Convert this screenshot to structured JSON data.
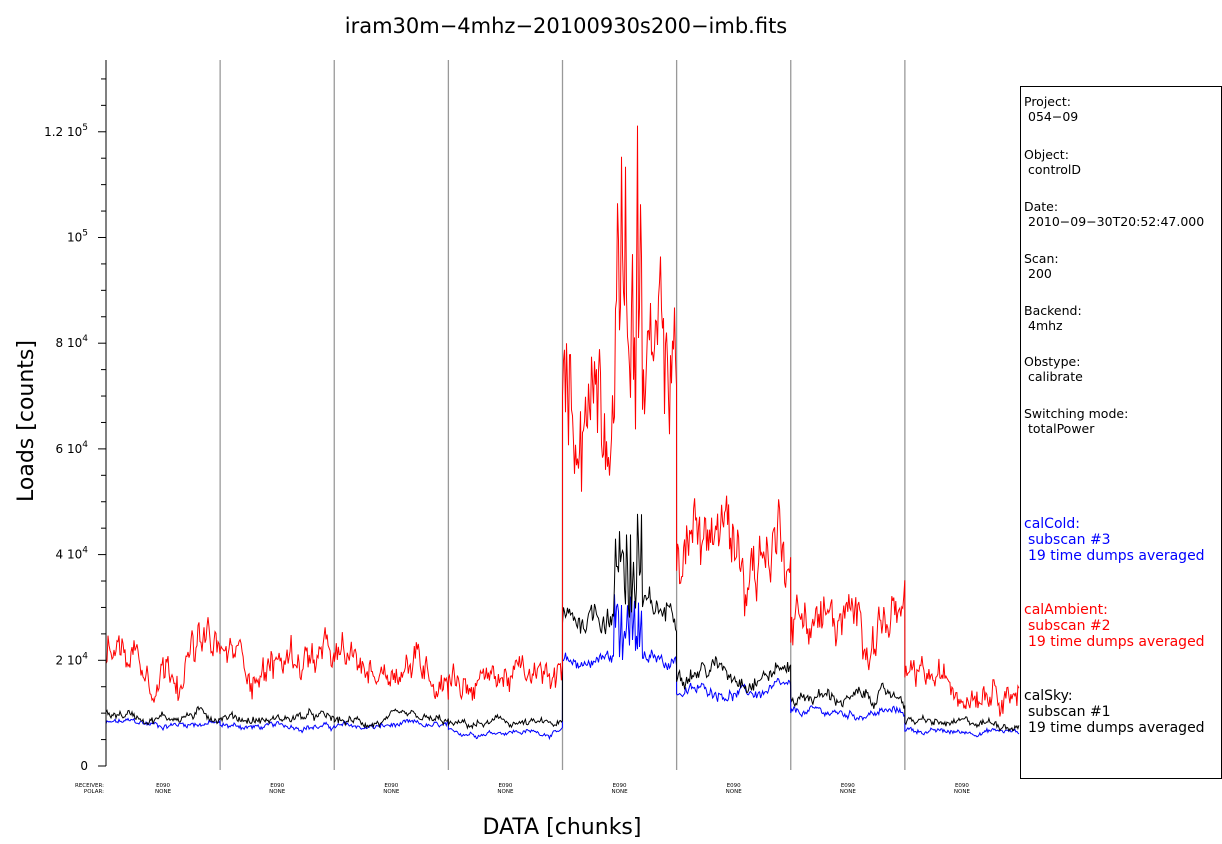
{
  "chart_data": {
    "type": "line",
    "title": "iram30m−4mhz−20100930s200−imb.fits",
    "xlabel": "DATA [chunks]",
    "ylabel": "Loads [counts]",
    "ylim": [
      0,
      130000
    ],
    "y_ticks": [
      {
        "value": 0,
        "label": "0"
      },
      {
        "value": 20000,
        "label": "2 10^4"
      },
      {
        "value": 40000,
        "label": "4 10^4"
      },
      {
        "value": 60000,
        "label": "6 10^4"
      },
      {
        "value": 80000,
        "label": "8 10^4"
      },
      {
        "value": 100000,
        "label": "10^5"
      },
      {
        "value": 120000,
        "label": "1.2 10^5"
      }
    ],
    "x_row_labels": [
      "RECEIVER:",
      "POLAR:"
    ],
    "chunks": [
      {
        "receiver": "E090",
        "polar": "NONE",
        "calAmbient": 21000,
        "calSky": 9500,
        "calCold": 8000
      },
      {
        "receiver": "E090",
        "polar": "NONE",
        "calAmbient": 20000,
        "calSky": 9000,
        "calCold": 7500
      },
      {
        "receiver": "E090",
        "polar": "NONE",
        "calAmbient": 19000,
        "calSky": 8500,
        "calCold": 7500
      },
      {
        "receiver": "E090",
        "polar": "NONE",
        "calAmbient": 16500,
        "calSky": 8000,
        "calCold": 6500
      },
      {
        "receiver": "E090",
        "polar": "NONE",
        "calAmbient": 74000,
        "calSky": 29000,
        "calCold": 20000
      },
      {
        "receiver": "E090",
        "polar": "NONE",
        "calAmbient": 42000,
        "calSky": 18000,
        "calCold": 14000
      },
      {
        "receiver": "E090",
        "polar": "NONE",
        "calAmbient": 27000,
        "calSky": 13000,
        "calCold": 10000
      },
      {
        "receiver": "E090",
        "polar": "NONE",
        "calAmbient": 16000,
        "calSky": 8000,
        "calCold": 6500
      }
    ],
    "series": [
      {
        "name": "calAmbient",
        "color": "#ff0000"
      },
      {
        "name": "calSky",
        "color": "#000000"
      },
      {
        "name": "calCold",
        "color": "#0000ff"
      }
    ],
    "grid": "vertical chunk separators",
    "legend_placement": "right panel"
  },
  "info": {
    "project_label": "Project:",
    "project_value": "054−09",
    "object_label": "Object:",
    "object_value": "controlD",
    "date_label": "Date:",
    "date_value": "2010−09−30T20:52:47.000",
    "scan_label": "Scan:",
    "scan_value": "200",
    "backend_label": "Backend:",
    "backend_value": "4mhz",
    "obstype_label": "Obstype:",
    "obstype_value": "calibrate",
    "switching_label": "Switching mode:",
    "switching_value": "totalPower"
  },
  "legend": [
    {
      "name": "calCold:",
      "line1": "subscan #3",
      "line2": "19 time dumps averaged",
      "color": "#0000ff"
    },
    {
      "name": "calAmbient:",
      "line1": "subscan #2",
      "line2": "19 time dumps averaged",
      "color": "#ff0000"
    },
    {
      "name": "calSky:",
      "line1": "subscan #1",
      "line2": "19 time dumps averaged",
      "color": "#000000"
    }
  ]
}
